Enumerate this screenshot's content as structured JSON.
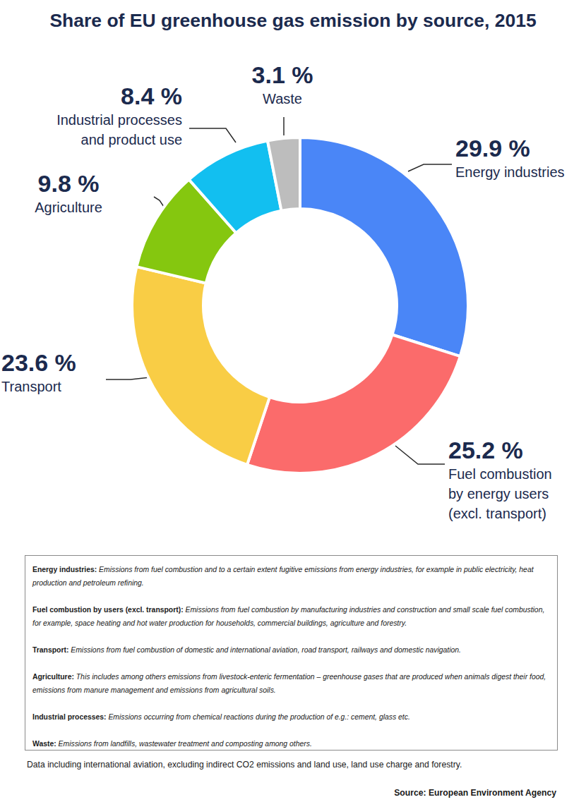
{
  "chart_data": {
    "type": "pie",
    "title": "Share of EU greenhouse gas emission by source, 2015",
    "categories": [
      "Energy industries",
      "Fuel combustion\nby energy users\n(excl. transport)",
      "Transport",
      "Agriculture",
      "Industrial processes\nand product use",
      "Waste"
    ],
    "values": [
      29.9,
      25.2,
      23.6,
      9.8,
      8.4,
      3.1
    ],
    "value_labels": [
      "29.9 %",
      "25.2 %",
      "23.6 %",
      "9.8 %",
      "8.4 %",
      "3.1 %"
    ],
    "colors": [
      "#4a86f7",
      "#fb6b6b",
      "#f9cd45",
      "#85c70f",
      "#12bff0",
      "#bdbdbd"
    ],
    "data_labels": true
  },
  "definitions": [
    {
      "term": "Energy industries:",
      "text": "Emissions from fuel combustion and to a certain extent fugitive emissions from energy industries, for example in public electricity, heat production and petroleum refining."
    },
    {
      "term": "Fuel combustion by users (excl. transport):",
      "text": "Emissions from fuel combustion by manufacturing industries and construction and small scale fuel combustion, for example, space heating and hot water production for households, commercial buildings, agriculture and forestry."
    },
    {
      "term": "Transport:",
      "text": "Emissions from fuel combustion of domestic and international aviation, road transport, railways and domestic navigation."
    },
    {
      "term": "Agriculture:",
      "text": "This includes among others emissions from livestock-enteric fermentation – greenhouse gases that are produced when animals digest their food, emissions from manure management and emissions from agricultural soils."
    },
    {
      "term": "Industrial processes:",
      "text": "Emissions occurring from chemical reactions during the production of e.g.: cement, glass etc."
    },
    {
      "term": "Waste:",
      "text": "Emissions from landfills, wastewater treatment and composting among others."
    }
  ],
  "note": "Data including international aviation, excluding indirect CO2 emissions and land use, land use charge and forestry.",
  "source": "Source: European Environment Agency"
}
